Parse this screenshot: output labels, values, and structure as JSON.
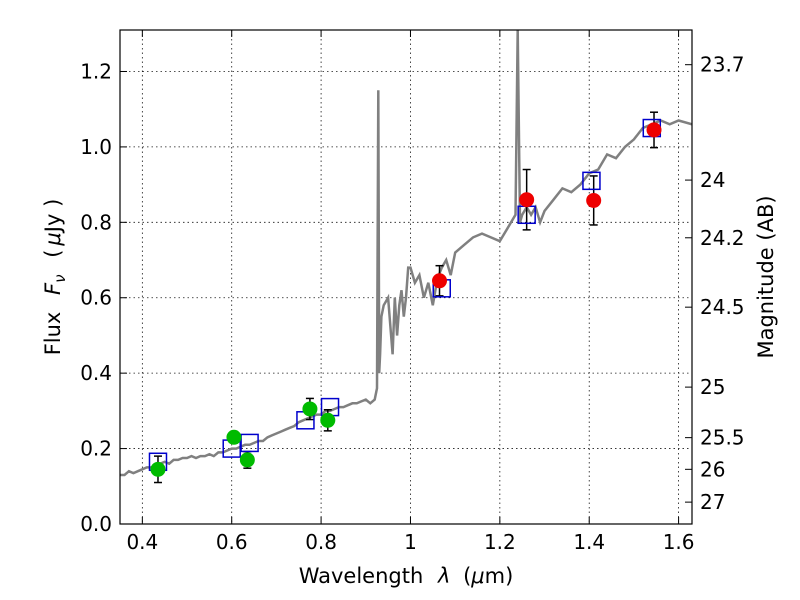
{
  "chart_data": {
    "type": "scatter",
    "xlabel_text": "Wavelength",
    "xlabel_symbol": "λ",
    "xlabel_unit_open": "(",
    "xlabel_unit_mu": "μ",
    "xlabel_unit_rest": "m)",
    "ylabel_text": "Flux",
    "ylabel_symbol": "F",
    "ylabel_subscript": "ν",
    "ylabel_unit_open": "(",
    "ylabel_unit_mu": "μ",
    "ylabel_unit_rest": "Jy )",
    "y2label": "Magnitude (AB)",
    "xlim": [
      0.35,
      1.63
    ],
    "ylim": [
      0.0,
      1.31
    ],
    "grid": true,
    "x_ticks": [
      0.4,
      0.6,
      0.8,
      1.0,
      1.2,
      1.4,
      1.6
    ],
    "x_tick_labels": [
      "0.4",
      "0.6",
      "0.8",
      "1",
      "1.2",
      "1.4",
      "1.6"
    ],
    "y_ticks": [
      0.0,
      0.2,
      0.4,
      0.6,
      0.8,
      1.0,
      1.2
    ],
    "y_tick_labels": [
      "0.0",
      "0.2",
      "0.4",
      "0.6",
      "0.8",
      "1.0",
      "1.2"
    ],
    "mag_ticks": [
      {
        "label": "23.7",
        "flux": 1.218
      },
      {
        "label": "24",
        "flux": 0.912
      },
      {
        "label": "24.2",
        "flux": 0.759
      },
      {
        "label": "24.5",
        "flux": 0.575
      },
      {
        "label": "25",
        "flux": 0.363
      },
      {
        "label": "25.5",
        "flux": 0.229
      },
      {
        "label": "26",
        "flux": 0.145
      },
      {
        "label": "27",
        "flux": 0.058
      }
    ],
    "series": [
      {
        "kind": "line",
        "color": "#808080",
        "x": [
          0.35,
          0.36,
          0.37,
          0.38,
          0.39,
          0.4,
          0.41,
          0.42,
          0.43,
          0.44,
          0.45,
          0.46,
          0.47,
          0.48,
          0.49,
          0.5,
          0.51,
          0.52,
          0.53,
          0.54,
          0.55,
          0.56,
          0.57,
          0.58,
          0.59,
          0.6,
          0.61,
          0.62,
          0.63,
          0.64,
          0.65,
          0.66,
          0.67,
          0.68,
          0.69,
          0.7,
          0.71,
          0.72,
          0.73,
          0.74,
          0.75,
          0.76,
          0.77,
          0.78,
          0.79,
          0.8,
          0.81,
          0.82,
          0.83,
          0.84,
          0.85,
          0.86,
          0.87,
          0.88,
          0.89,
          0.9,
          0.91,
          0.92,
          0.925,
          0.928,
          0.93,
          0.932,
          0.935,
          0.94,
          0.95,
          0.96,
          0.965,
          0.97,
          0.975,
          0.98,
          0.985,
          0.99,
          0.995,
          1.0,
          1.01,
          1.02,
          1.03,
          1.04,
          1.05,
          1.06,
          1.07,
          1.08,
          1.09,
          1.1,
          1.12,
          1.14,
          1.16,
          1.18,
          1.2,
          1.22,
          1.235,
          1.24,
          1.245,
          1.25,
          1.26,
          1.27,
          1.28,
          1.29,
          1.3,
          1.32,
          1.34,
          1.36,
          1.38,
          1.4,
          1.42,
          1.44,
          1.46,
          1.48,
          1.5,
          1.52,
          1.54,
          1.56,
          1.58,
          1.6,
          1.63
        ],
        "y": [
          0.13,
          0.13,
          0.14,
          0.135,
          0.14,
          0.145,
          0.15,
          0.15,
          0.155,
          0.16,
          0.165,
          0.16,
          0.17,
          0.17,
          0.175,
          0.175,
          0.18,
          0.175,
          0.18,
          0.18,
          0.185,
          0.18,
          0.19,
          0.19,
          0.195,
          0.2,
          0.2,
          0.205,
          0.21,
          0.21,
          0.215,
          0.22,
          0.22,
          0.23,
          0.235,
          0.24,
          0.245,
          0.25,
          0.255,
          0.26,
          0.27,
          0.275,
          0.28,
          0.285,
          0.29,
          0.29,
          0.3,
          0.3,
          0.305,
          0.31,
          0.31,
          0.315,
          0.32,
          0.32,
          0.325,
          0.33,
          0.32,
          0.33,
          0.36,
          1.15,
          0.4,
          0.45,
          0.55,
          0.58,
          0.6,
          0.45,
          0.6,
          0.5,
          0.58,
          0.62,
          0.55,
          0.6,
          0.68,
          0.68,
          0.64,
          0.66,
          0.6,
          0.64,
          0.58,
          0.65,
          0.68,
          0.7,
          0.66,
          0.72,
          0.74,
          0.76,
          0.77,
          0.76,
          0.75,
          0.79,
          0.82,
          1.31,
          0.8,
          0.82,
          0.84,
          0.82,
          0.84,
          0.8,
          0.83,
          0.86,
          0.89,
          0.88,
          0.9,
          0.93,
          0.94,
          0.98,
          0.97,
          1.0,
          1.02,
          1.05,
          1.06,
          1.07,
          1.06,
          1.07,
          1.06
        ]
      },
      {
        "kind": "points",
        "name": "",
        "color": "#00bb00",
        "x": [
          0.435,
          0.605,
          0.635,
          0.775,
          0.815
        ],
        "y": [
          0.145,
          0.23,
          0.17,
          0.305,
          0.275
        ],
        "yerr": [
          0.035,
          0.015,
          0.022,
          0.028,
          0.028
        ]
      },
      {
        "kind": "points",
        "name": "",
        "color": "#ee0000",
        "x": [
          1.065,
          1.26,
          1.41,
          1.545
        ],
        "y": [
          0.645,
          0.86,
          0.858,
          1.045
        ],
        "yerr": [
          0.04,
          0.08,
          0.065,
          0.047
        ]
      },
      {
        "kind": "squares",
        "name": "",
        "color": "#0000cc",
        "x": [
          0.435,
          0.6,
          0.64,
          0.765,
          0.82,
          1.07,
          1.26,
          1.405,
          1.54
        ],
        "y": [
          0.165,
          0.2,
          0.215,
          0.275,
          0.31,
          0.625,
          0.82,
          0.91,
          1.05
        ]
      }
    ]
  }
}
